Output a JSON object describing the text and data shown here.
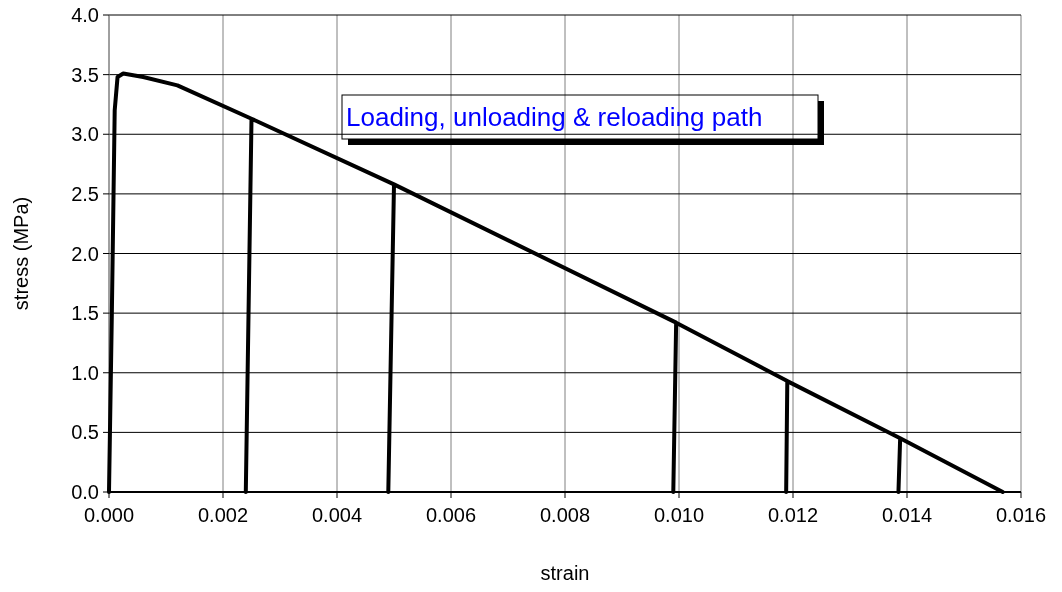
{
  "chart_data": {
    "type": "line",
    "xlabel": "strain",
    "ylabel": "stress (MPa)",
    "annotations": [
      "Loading, unloading & reloading path"
    ],
    "xlim": [
      0,
      0.016
    ],
    "xticks": [
      {
        "value": 0,
        "label": "0.000"
      },
      {
        "value": 0.002,
        "label": "0.002"
      },
      {
        "value": 0.004,
        "label": "0.004"
      },
      {
        "value": 0.006,
        "label": "0.006"
      },
      {
        "value": 0.008,
        "label": "0.008"
      },
      {
        "value": 0.01,
        "label": "0.010"
      },
      {
        "value": 0.012,
        "label": "0.012"
      },
      {
        "value": 0.014,
        "label": "0.014"
      },
      {
        "value": 0.016,
        "label": "0.016"
      }
    ],
    "ylim": [
      0,
      4
    ],
    "yticks": [
      {
        "value": 0,
        "label": "0.0"
      },
      {
        "value": 0.5,
        "label": "0.5"
      },
      {
        "value": 1,
        "label": "1.0"
      },
      {
        "value": 1.5,
        "label": "1.5"
      },
      {
        "value": 2,
        "label": "2.0"
      },
      {
        "value": 2.5,
        "label": "2.5"
      },
      {
        "value": 3,
        "label": "3.0"
      },
      {
        "value": 3.5,
        "label": "3.5"
      },
      {
        "value": 4,
        "label": "4.0"
      }
    ],
    "grid": true,
    "marker": "none",
    "line_style": "solid",
    "series": [
      {
        "color": "#000000",
        "x": [
          0,
          5e-05,
          0.0001,
          0.00015,
          0.00025,
          0.0006,
          0.0012,
          0.0025,
          0.0024,
          0.0025,
          0.005,
          0.0049,
          0.005,
          0.00995,
          0.0099,
          0.00995,
          0.0119,
          0.01188,
          0.0119,
          0.01388,
          0.01385,
          0.01388,
          0.01568
        ],
        "values": [
          0,
          1.5,
          3.2,
          3.48,
          3.51,
          3.48,
          3.41,
          3.13,
          0,
          3.13,
          2.58,
          0,
          2.58,
          1.42,
          0,
          1.42,
          0.93,
          0,
          0.93,
          0.45,
          0,
          0.45,
          0
        ]
      }
    ]
  }
}
